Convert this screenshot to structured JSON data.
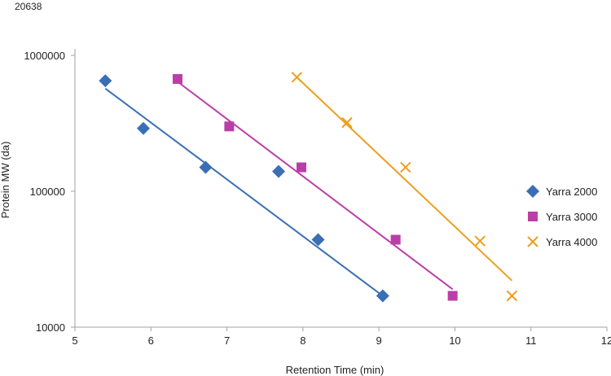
{
  "figure_id": "20638",
  "chart_data": {
    "type": "scatter",
    "xlabel": "Retention Time (min)",
    "ylabel": "Protein MW (da)",
    "xlim": [
      5,
      12
    ],
    "ylim": [
      10000,
      1000000
    ],
    "yscale": "log",
    "x_ticks": [
      "5",
      "6",
      "7",
      "8",
      "9",
      "10",
      "11",
      "12"
    ],
    "y_ticks": [
      "10000",
      "100000",
      "1000000"
    ],
    "grid": false,
    "legend_position": "right",
    "series": [
      {
        "name": "Yarra 2000",
        "marker": "diamond",
        "color": "#3a6fb5",
        "x": [
          5.4,
          5.9,
          6.72,
          7.68,
          8.2,
          9.05
        ],
        "y": [
          650000,
          290000,
          150000,
          140000,
          44000,
          17000
        ],
        "trendline": {
          "x": [
            5.4,
            9.05
          ],
          "y": [
            570000,
            17000
          ]
        }
      },
      {
        "name": "Yarra 3000",
        "marker": "square",
        "color": "#bb3ea8",
        "x": [
          6.35,
          7.03,
          7.98,
          9.22,
          9.97
        ],
        "y": [
          670000,
          300000,
          150000,
          44000,
          17000
        ],
        "trendline": {
          "x": [
            6.35,
            9.97
          ],
          "y": [
            640000,
            19000
          ]
        }
      },
      {
        "name": "Yarra 4000",
        "marker": "x",
        "color": "#ee9e1e",
        "x": [
          7.92,
          8.58,
          9.35,
          10.33,
          10.75
        ],
        "y": [
          690000,
          320000,
          150000,
          43000,
          17000
        ],
        "trendline": {
          "x": [
            7.92,
            10.75
          ],
          "y": [
            690000,
            22000
          ]
        }
      }
    ]
  }
}
